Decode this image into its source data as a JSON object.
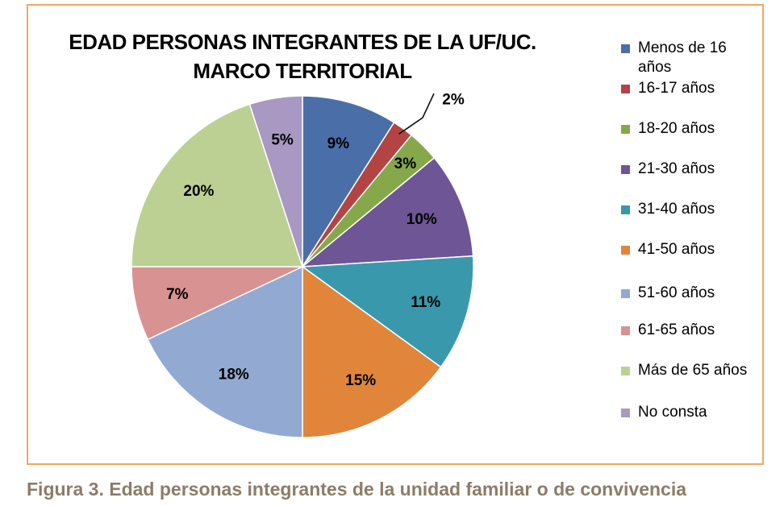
{
  "chart_data": {
    "type": "pie",
    "title": [
      "EDAD PERSONAS INTEGRANTES DE LA UF/UC.",
      "MARCO TERRITORIAL"
    ],
    "legend_position": "right",
    "slices": [
      {
        "label": "Menos de 16 años",
        "value": 9,
        "display": "9%",
        "color": "#4a6fa8"
      },
      {
        "label": "16-17 años",
        "value": 2,
        "display": "2%",
        "color": "#b34443"
      },
      {
        "label": "18-20 años",
        "value": 3,
        "display": "3%",
        "color": "#86a84a"
      },
      {
        "label": "21-30 años",
        "value": 10,
        "display": "10%",
        "color": "#6e5595"
      },
      {
        "label": "31-40 años",
        "value": 11,
        "display": "11%",
        "color": "#3a98ad"
      },
      {
        "label": "41-50 años",
        "value": 15,
        "display": "15%",
        "color": "#e0853a"
      },
      {
        "label": "51-60 años",
        "value": 18,
        "display": "18%",
        "color": "#92a9d2"
      },
      {
        "label": "61-65 años",
        "value": 7,
        "display": "7%",
        "color": "#d89291"
      },
      {
        "label": "Más de 65 años",
        "value": 20,
        "display": "20%",
        "color": "#bcd094"
      },
      {
        "label": "No consta",
        "value": 5,
        "display": "5%",
        "color": "#a898c2"
      }
    ]
  },
  "caption": "Figura 3. Edad personas integrantes de  la unidad familiar o de convivencia",
  "frame_color": "#f0a860"
}
